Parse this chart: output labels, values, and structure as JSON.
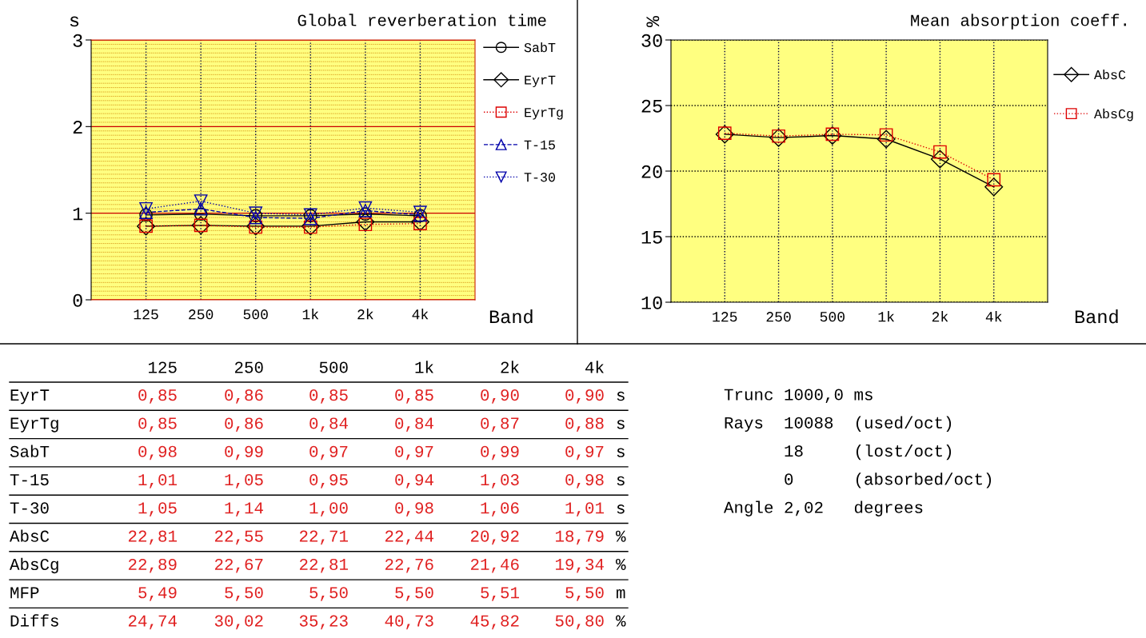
{
  "chart_data": [
    {
      "type": "line",
      "title": "Global reverberation time",
      "ylabel": "s",
      "xlabel": "Band",
      "categories": [
        "125",
        "250",
        "500",
        "1k",
        "2k",
        "4k"
      ],
      "ylim": [
        0,
        3
      ],
      "yticks": [
        0,
        1,
        2,
        3
      ],
      "grid": true,
      "legend": "right",
      "series": [
        {
          "name": "SabT",
          "color": "#000000",
          "marker": "circle",
          "line_style": "solid",
          "values": [
            0.98,
            0.99,
            0.97,
            0.97,
            0.99,
            0.97
          ]
        },
        {
          "name": "EyrT",
          "color": "#000000",
          "marker": "diamond",
          "line_style": "solid",
          "values": [
            0.85,
            0.86,
            0.85,
            0.85,
            0.9,
            0.9
          ]
        },
        {
          "name": "EyrTg",
          "color": "#dd0000",
          "marker": "square",
          "line_style": "dotted",
          "values": [
            0.85,
            0.86,
            0.84,
            0.84,
            0.87,
            0.88
          ]
        },
        {
          "name": "T-15",
          "color": "#0000aa",
          "marker": "triangle",
          "line_style": "dashed",
          "values": [
            1.01,
            1.05,
            0.95,
            0.94,
            1.03,
            0.98
          ]
        },
        {
          "name": "T-30",
          "color": "#0000aa",
          "marker": "triangle_down",
          "line_style": "dotted",
          "values": [
            1.05,
            1.14,
            1.0,
            0.98,
            1.06,
            1.01
          ]
        }
      ]
    },
    {
      "type": "line",
      "title": "Mean absorption coeff.",
      "ylabel": "%",
      "xlabel": "Band",
      "categories": [
        "125",
        "250",
        "500",
        "1k",
        "2k",
        "4k"
      ],
      "ylim": [
        10,
        30
      ],
      "yticks": [
        10,
        15,
        20,
        25,
        30
      ],
      "grid": true,
      "legend": "right",
      "series": [
        {
          "name": "AbsC",
          "color": "#000000",
          "marker": "diamond",
          "line_style": "solid",
          "values": [
            22.81,
            22.55,
            22.71,
            22.44,
            20.92,
            18.79
          ]
        },
        {
          "name": "AbsCg",
          "color": "#dd0000",
          "marker": "square",
          "line_style": "dotted",
          "values": [
            22.89,
            22.67,
            22.81,
            22.76,
            21.46,
            19.34
          ]
        }
      ]
    },
    {
      "type": "other",
      "categories": [
        "125",
        "250",
        "500",
        "1k",
        "2k",
        "4k",
        null
      ],
      "series": [
        {
          "name": "EyrT",
          "values": [
            0.85,
            0.86,
            0.85,
            0.85,
            0.9,
            0.9,
            null
          ],
          "value_labels": [
            "0,85",
            "0,86",
            "0,85",
            "0,85",
            "0,90",
            "0,90",
            "s"
          ]
        },
        {
          "name": "EyrTg",
          "values": [
            0.85,
            0.86,
            0.84,
            0.84,
            0.87,
            0.88,
            null
          ],
          "value_labels": [
            "0,85",
            "0,86",
            "0,84",
            "0,84",
            "0,87",
            "0,88",
            "s"
          ]
        },
        {
          "name": "SabT",
          "values": [
            0.98,
            0.99,
            0.97,
            0.97,
            0.99,
            0.97,
            null
          ],
          "value_labels": [
            "0,98",
            "0,99",
            "0,97",
            "0,97",
            "0,99",
            "0,97",
            "s"
          ]
        },
        {
          "name": "T-15",
          "values": [
            1.01,
            1.05,
            0.95,
            0.94,
            1.03,
            0.98,
            null
          ],
          "value_labels": [
            "1,01",
            "1,05",
            "0,95",
            "0,94",
            "1,03",
            "0,98",
            "s"
          ]
        },
        {
          "name": "T-30",
          "values": [
            1.05,
            1.14,
            1.0,
            0.98,
            1.06,
            1.01,
            null
          ],
          "value_labels": [
            "1,05",
            "1,14",
            "1,00",
            "0,98",
            "1,06",
            "1,01",
            "s"
          ]
        },
        {
          "name": "AbsC",
          "values": [
            22.81,
            22.55,
            22.71,
            22.44,
            20.92,
            18.79,
            null
          ],
          "value_labels": [
            "22,81",
            "22,55",
            "22,71",
            "22,44",
            "20,92",
            "18,79",
            "%"
          ]
        },
        {
          "name": "AbsCg",
          "values": [
            22.89,
            22.67,
            22.81,
            22.76,
            21.46,
            19.34,
            null
          ],
          "value_labels": [
            "22,89",
            "22,67",
            "22,81",
            "22,76",
            "21,46",
            "19,34",
            "%"
          ]
        },
        {
          "name": "MFP",
          "values": [
            5.49,
            5.5,
            5.5,
            5.5,
            5.51,
            5.5,
            null
          ],
          "value_labels": [
            "5,49",
            "5,50",
            "5,50",
            "5,50",
            "5,51",
            "5,50",
            "m"
          ]
        },
        {
          "name": "Diffs",
          "values": [
            24.74,
            30.02,
            35.23,
            40.73,
            45.82,
            50.8,
            null
          ],
          "value_labels": [
            "24,74",
            "30,02",
            "35,23",
            "40,73",
            "45,82",
            "50,80",
            "%"
          ]
        }
      ]
    },
    {
      "type": "other",
      "annotations": [
        "Trunc 1000,0 ms",
        "Rays  10088  (used/oct)",
        "      18     (lost/oct)",
        "      0      (absorbed/oct)",
        "Angle 2,02   degrees"
      ]
    }
  ]
}
